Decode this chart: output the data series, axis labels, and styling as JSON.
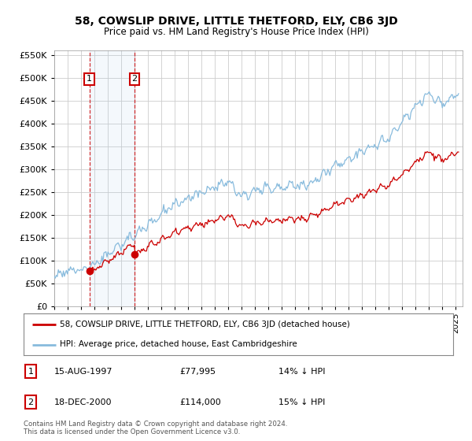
{
  "title": "58, COWSLIP DRIVE, LITTLE THETFORD, ELY, CB6 3JD",
  "subtitle": "Price paid vs. HM Land Registry's House Price Index (HPI)",
  "legend_line1": "58, COWSLIP DRIVE, LITTLE THETFORD, ELY, CB6 3JD (detached house)",
  "legend_line2": "HPI: Average price, detached house, East Cambridgeshire",
  "table_rows": [
    [
      "1",
      "15-AUG-1997",
      "£77,995",
      "14% ↓ HPI"
    ],
    [
      "2",
      "18-DEC-2000",
      "£114,000",
      "15% ↓ HPI"
    ]
  ],
  "footnote": "Contains HM Land Registry data © Crown copyright and database right 2024.\nThis data is licensed under the Open Government Licence v3.0.",
  "sale1_date": 1997.62,
  "sale1_price": 77995,
  "sale2_date": 2001.0,
  "sale2_price": 114000,
  "line_color_red": "#cc0000",
  "line_color_blue": "#88bbdd",
  "ylim": [
    0,
    560000
  ],
  "xlim_start": 1995.0,
  "xlim_end": 2025.5,
  "background_color": "#ffffff",
  "grid_color": "#cccccc"
}
